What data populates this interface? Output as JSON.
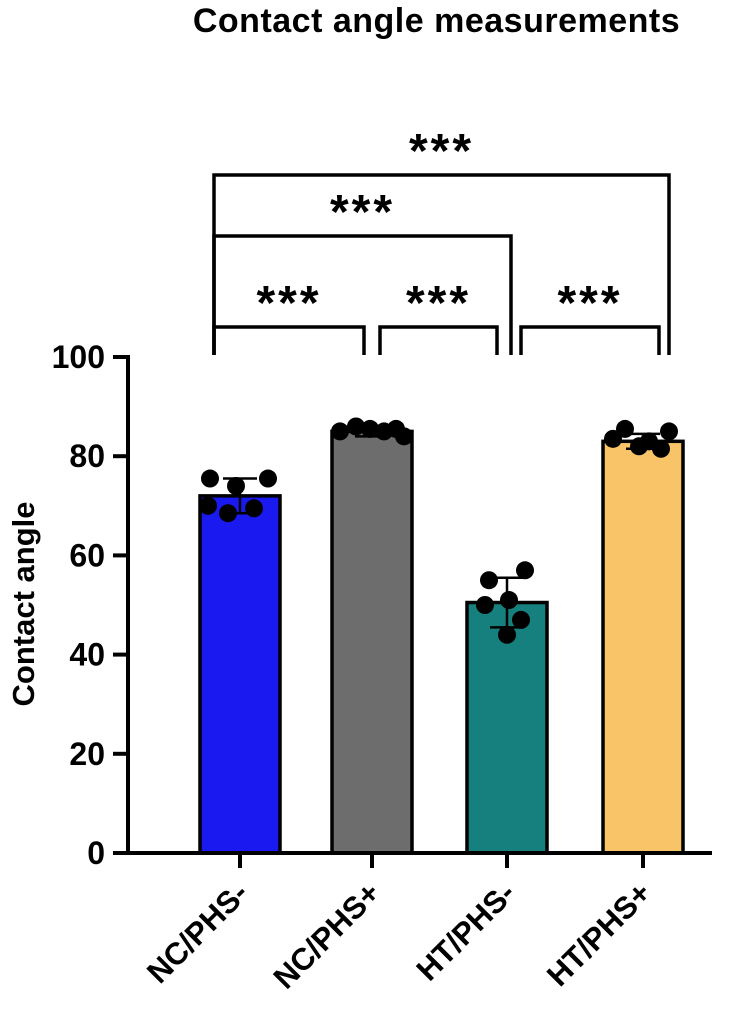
{
  "chart_data": {
    "type": "bar",
    "title": "Contact angle measurements",
    "ylabel": "Contact angle",
    "xlabel": "",
    "ylim": [
      0,
      100
    ],
    "yticks": [
      0,
      20,
      40,
      60,
      80,
      100
    ],
    "grid": false,
    "legend": "none",
    "categories": [
      "NC/PHS-",
      "NC/PHS+",
      "HT/PHS-",
      "HT/PHS+"
    ],
    "series": [
      {
        "name": "Contact angle",
        "values": [
          72,
          85,
          50.5,
          83
        ]
      }
    ],
    "errors": [
      3.5,
      1,
      5,
      1.5
    ],
    "bar_colors": [
      "#1a1af0",
      "#6d6d6d",
      "#15807d",
      "#f8c467"
    ],
    "bar_edge_color": "#000000",
    "axis_color": "#000000",
    "background": "#ffffff",
    "points": [
      [
        75.5,
        75.5,
        74,
        70,
        69.5,
        68.5
      ],
      [
        86,
        85.5,
        85.5,
        85,
        85,
        84
      ],
      [
        57,
        55,
        51,
        50,
        47,
        44
      ],
      [
        85.5,
        85,
        83.5,
        83,
        82,
        81.5
      ]
    ],
    "significance": [
      {
        "from": 0,
        "to": 1,
        "pair": [
          "NC/PHS-",
          "NC/PHS+"
        ],
        "label": "***"
      },
      {
        "from": 1,
        "to": 2,
        "pair": [
          "NC/PHS+",
          "HT/PHS-"
        ],
        "label": "***"
      },
      {
        "from": 2,
        "to": 3,
        "pair": [
          "HT/PHS-",
          "HT/PHS+"
        ],
        "label": "***"
      },
      {
        "from": 0,
        "to": 2,
        "pair": [
          "NC/PHS-",
          "HT/PHS-"
        ],
        "label": "***"
      },
      {
        "from": 0,
        "to": 3,
        "pair": [
          "NC/PHS-",
          "HT/PHS+"
        ],
        "label": "***"
      }
    ]
  }
}
